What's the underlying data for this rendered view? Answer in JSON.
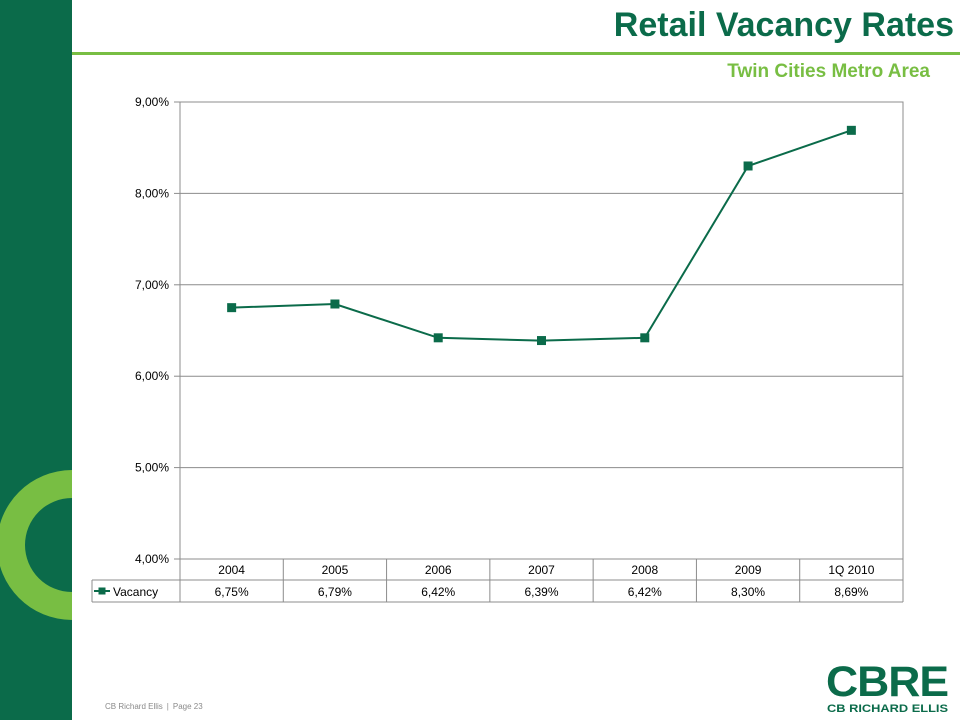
{
  "header": {
    "title": "Retail Vacancy Rates",
    "subtitle": "Twin Cities Metro Area"
  },
  "footer": {
    "company": "CB Richard Ellis",
    "page": "Page 23"
  },
  "logo": {
    "wordmark": "CBRE",
    "tagline": "CB RICHARD ELLIS"
  },
  "colors": {
    "brand_green": "#0b6b4a",
    "accent_green": "#78be43"
  },
  "chart_data": {
    "type": "line",
    "categories": [
      "2004",
      "2005",
      "2006",
      "2007",
      "2008",
      "2009",
      "1Q 2010"
    ],
    "series": [
      {
        "name": "Vacancy",
        "values": [
          6.75,
          6.79,
          6.42,
          6.39,
          6.42,
          8.3,
          8.69
        ],
        "value_labels": [
          "6,75%",
          "6,79%",
          "6,42%",
          "6,39%",
          "6,42%",
          "8,30%",
          "8,69%"
        ],
        "color": "#0b6b4a",
        "marker": "square"
      }
    ],
    "ylim": [
      4.0,
      9.0
    ],
    "yticks": [
      4.0,
      5.0,
      6.0,
      7.0,
      8.0,
      9.0
    ],
    "ytick_labels": [
      "4,00%",
      "5,00%",
      "6,00%",
      "7,00%",
      "8,00%",
      "9,00%"
    ],
    "grid": true,
    "legend": "data table"
  }
}
